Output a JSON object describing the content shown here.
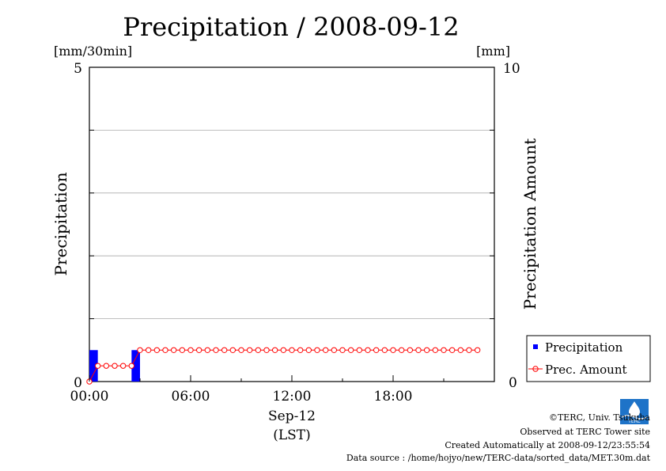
{
  "chart_data": {
    "type": "bar",
    "title": "Precipitation / 2008-09-12",
    "left_unit": "[mm/30min]",
    "right_unit": "[mm]",
    "ylabel_left": "Precipitation",
    "ylabel_right": "Precipitation Amount",
    "ylim_left": [
      0,
      5
    ],
    "ylim_right": [
      0,
      10
    ],
    "y_ticks_left": [
      "5",
      "0"
    ],
    "y_ticks_right": [
      "10",
      "0"
    ],
    "xlim_hours": [
      0,
      24
    ],
    "x_ticks": [
      {
        "hour": 0,
        "label": "00:00"
      },
      {
        "hour": 6,
        "label": "06:00"
      },
      {
        "hour": 12,
        "label": "12:00"
      },
      {
        "hour": 18,
        "label": "18:00"
      }
    ],
    "x_date_label": "Sep-12",
    "x_tz_label": "(LST)",
    "grid": true,
    "legend_position": "bottom-right",
    "series": [
      {
        "name": "Precipitation",
        "kind": "bar",
        "axis": "left",
        "color": "#0000ff",
        "points": [
          {
            "start_hour": 0.0,
            "end_hour": 0.5,
            "value": 0.5
          },
          {
            "start_hour": 2.5,
            "end_hour": 3.0,
            "value": 0.5
          }
        ]
      },
      {
        "name": "Prec. Amount",
        "kind": "line",
        "axis": "right",
        "color": "#ff0000",
        "hours": [
          0,
          0.5,
          1,
          1.5,
          2,
          2.5,
          3,
          3.5,
          4,
          4.5,
          5,
          5.5,
          6,
          6.5,
          7,
          7.5,
          8,
          8.5,
          9,
          9.5,
          10,
          10.5,
          11,
          11.5,
          12,
          12.5,
          13,
          13.5,
          14,
          14.5,
          15,
          15.5,
          16,
          16.5,
          17,
          17.5,
          18,
          18.5,
          19,
          19.5,
          20,
          20.5,
          21,
          21.5,
          22,
          22.5,
          23
        ],
        "values": [
          0,
          0.5,
          0.5,
          0.5,
          0.5,
          0.5,
          1,
          1,
          1,
          1,
          1,
          1,
          1,
          1,
          1,
          1,
          1,
          1,
          1,
          1,
          1,
          1,
          1,
          1,
          1,
          1,
          1,
          1,
          1,
          1,
          1,
          1,
          1,
          1,
          1,
          1,
          1,
          1,
          1,
          1,
          1,
          1,
          1,
          1,
          1,
          1,
          1
        ]
      }
    ]
  },
  "credits": {
    "copyright": "©TERC, Univ. Tsukuba",
    "observed": "Observed at TERC Tower site",
    "created": "Created Automatically at 2008-09-12/23:55:54",
    "source": "Data source : /home/hojyo/new/TERC-data/sorted_data/MET.30m.dat",
    "logo_text": "TERC"
  }
}
